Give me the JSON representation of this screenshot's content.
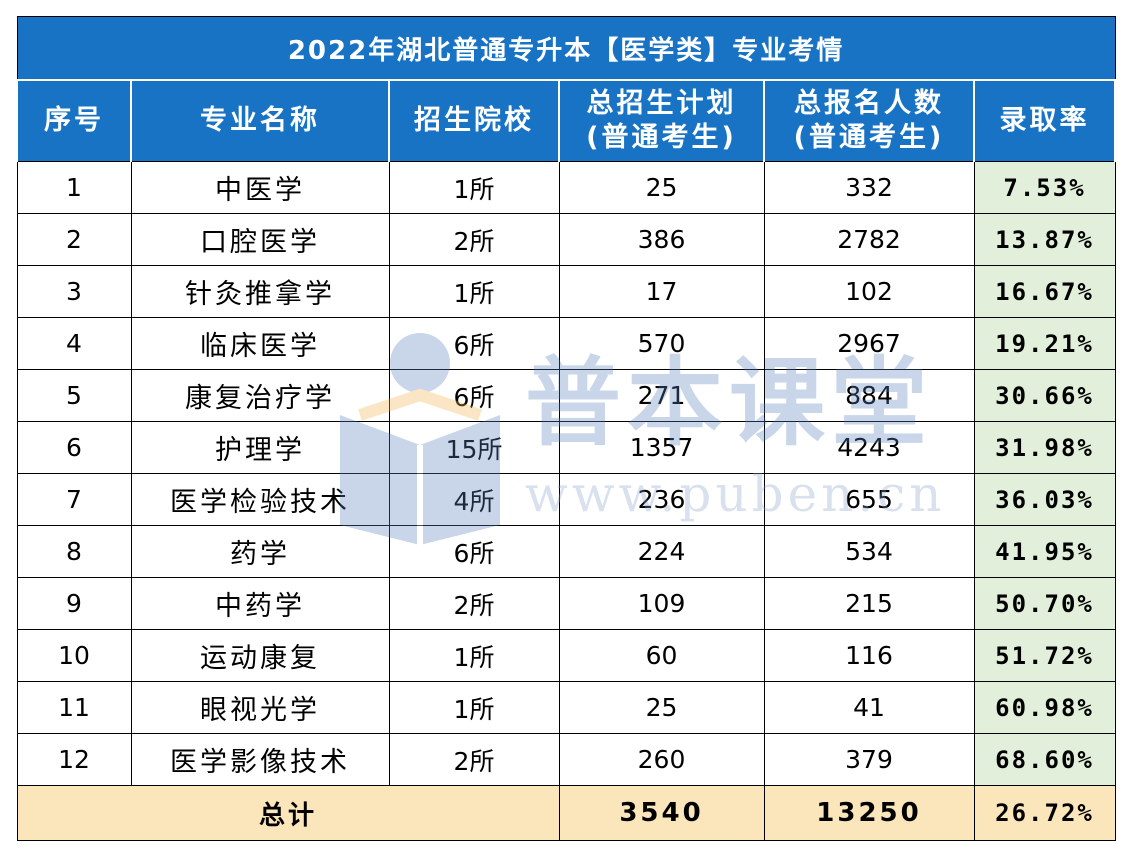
{
  "title": "2022年湖北普通专升本【医学类】专业考情",
  "headers": {
    "index": "序号",
    "major": "专业名称",
    "schools": "招生院校",
    "plan_line1": "总招生计划",
    "plan_line2": "(普通考生)",
    "applicants_line1": "总报名人数",
    "applicants_line2": "(普通考生)",
    "rate": "录取率"
  },
  "rows": [
    {
      "index": "1",
      "major": "中医学",
      "schools": "1所",
      "plan": "25",
      "applicants": "332",
      "rate": "7.53%"
    },
    {
      "index": "2",
      "major": "口腔医学",
      "schools": "2所",
      "plan": "386",
      "applicants": "2782",
      "rate": "13.87%"
    },
    {
      "index": "3",
      "major": "针灸推拿学",
      "schools": "1所",
      "plan": "17",
      "applicants": "102",
      "rate": "16.67%"
    },
    {
      "index": "4",
      "major": "临床医学",
      "schools": "6所",
      "plan": "570",
      "applicants": "2967",
      "rate": "19.21%"
    },
    {
      "index": "5",
      "major": "康复治疗学",
      "schools": "6所",
      "plan": "271",
      "applicants": "884",
      "rate": "30.66%"
    },
    {
      "index": "6",
      "major": "护理学",
      "schools": "15所",
      "plan": "1357",
      "applicants": "4243",
      "rate": "31.98%"
    },
    {
      "index": "7",
      "major": "医学检验技术",
      "schools": "4所",
      "plan": "236",
      "applicants": "655",
      "rate": "36.03%"
    },
    {
      "index": "8",
      "major": "药学",
      "schools": "6所",
      "plan": "224",
      "applicants": "534",
      "rate": "41.95%"
    },
    {
      "index": "9",
      "major": "中药学",
      "schools": "2所",
      "plan": "109",
      "applicants": "215",
      "rate": "50.70%"
    },
    {
      "index": "10",
      "major": "运动康复",
      "schools": "1所",
      "plan": "60",
      "applicants": "116",
      "rate": "51.72%"
    },
    {
      "index": "11",
      "major": "眼视光学",
      "schools": "1所",
      "plan": "25",
      "applicants": "41",
      "rate": "60.98%"
    },
    {
      "index": "12",
      "major": "医学影像技术",
      "schools": "2所",
      "plan": "260",
      "applicants": "379",
      "rate": "68.60%"
    }
  ],
  "total": {
    "label": "总计",
    "plan": "3540",
    "applicants": "13250",
    "rate": "26.72%"
  },
  "watermark": {
    "name": "普本课堂",
    "url": "www.puben.cn"
  },
  "colors": {
    "header_blue": "#1873c4",
    "rate_green": "#e2efda",
    "total_beige": "#fbe5ba"
  }
}
